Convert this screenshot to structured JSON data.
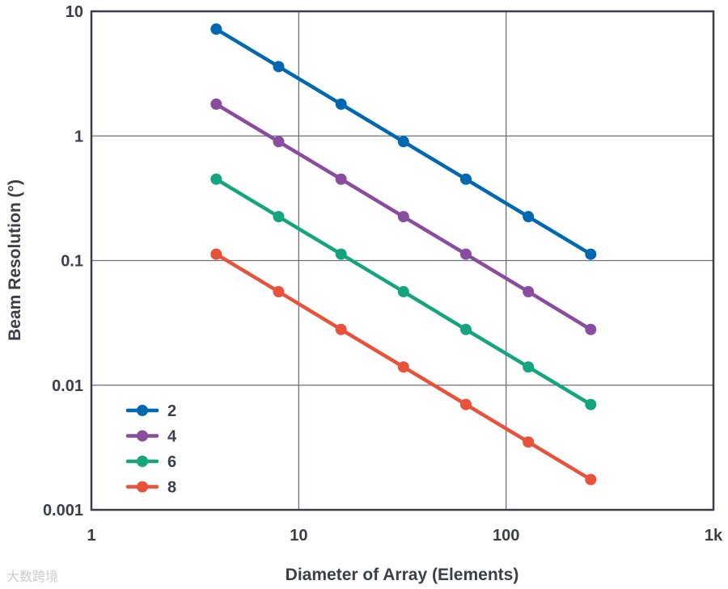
{
  "chart_data": {
    "type": "line",
    "xlabel": "Diameter of Array (Elements)",
    "ylabel": "Beam Resolution (°)",
    "x_scale": "log",
    "y_scale": "log",
    "xlim": [
      1,
      1000
    ],
    "ylim": [
      0.001,
      10
    ],
    "x_ticks": [
      {
        "value": 1,
        "label": "1"
      },
      {
        "value": 10,
        "label": "10"
      },
      {
        "value": 100,
        "label": "100"
      },
      {
        "value": 1000,
        "label": "1k"
      }
    ],
    "y_ticks": [
      {
        "value": 0.001,
        "label": "0.001"
      },
      {
        "value": 0.01,
        "label": "0.01"
      },
      {
        "value": 0.1,
        "label": "0.1"
      },
      {
        "value": 1,
        "label": "1"
      },
      {
        "value": 10,
        "label": "10"
      }
    ],
    "grid": true,
    "legend_position": "bottom-left",
    "x": [
      4,
      8,
      16,
      32,
      64,
      128,
      256
    ],
    "series": [
      {
        "name": "2",
        "color": "#0067b1",
        "values": [
          7.2,
          3.6,
          1.8,
          0.9,
          0.45,
          0.225,
          0.1125
        ]
      },
      {
        "name": "4",
        "color": "#8a4c9f",
        "values": [
          1.8,
          0.9,
          0.45,
          0.225,
          0.1125,
          0.05625,
          0.028
        ]
      },
      {
        "name": "6",
        "color": "#14a57e",
        "values": [
          0.45,
          0.225,
          0.1125,
          0.05625,
          0.028,
          0.014,
          0.007
        ]
      },
      {
        "name": "8",
        "color": "#e8513a",
        "values": [
          0.1125,
          0.05625,
          0.028,
          0.014,
          0.007,
          0.0035,
          0.00175
        ]
      }
    ]
  },
  "watermark": "大数跨境"
}
